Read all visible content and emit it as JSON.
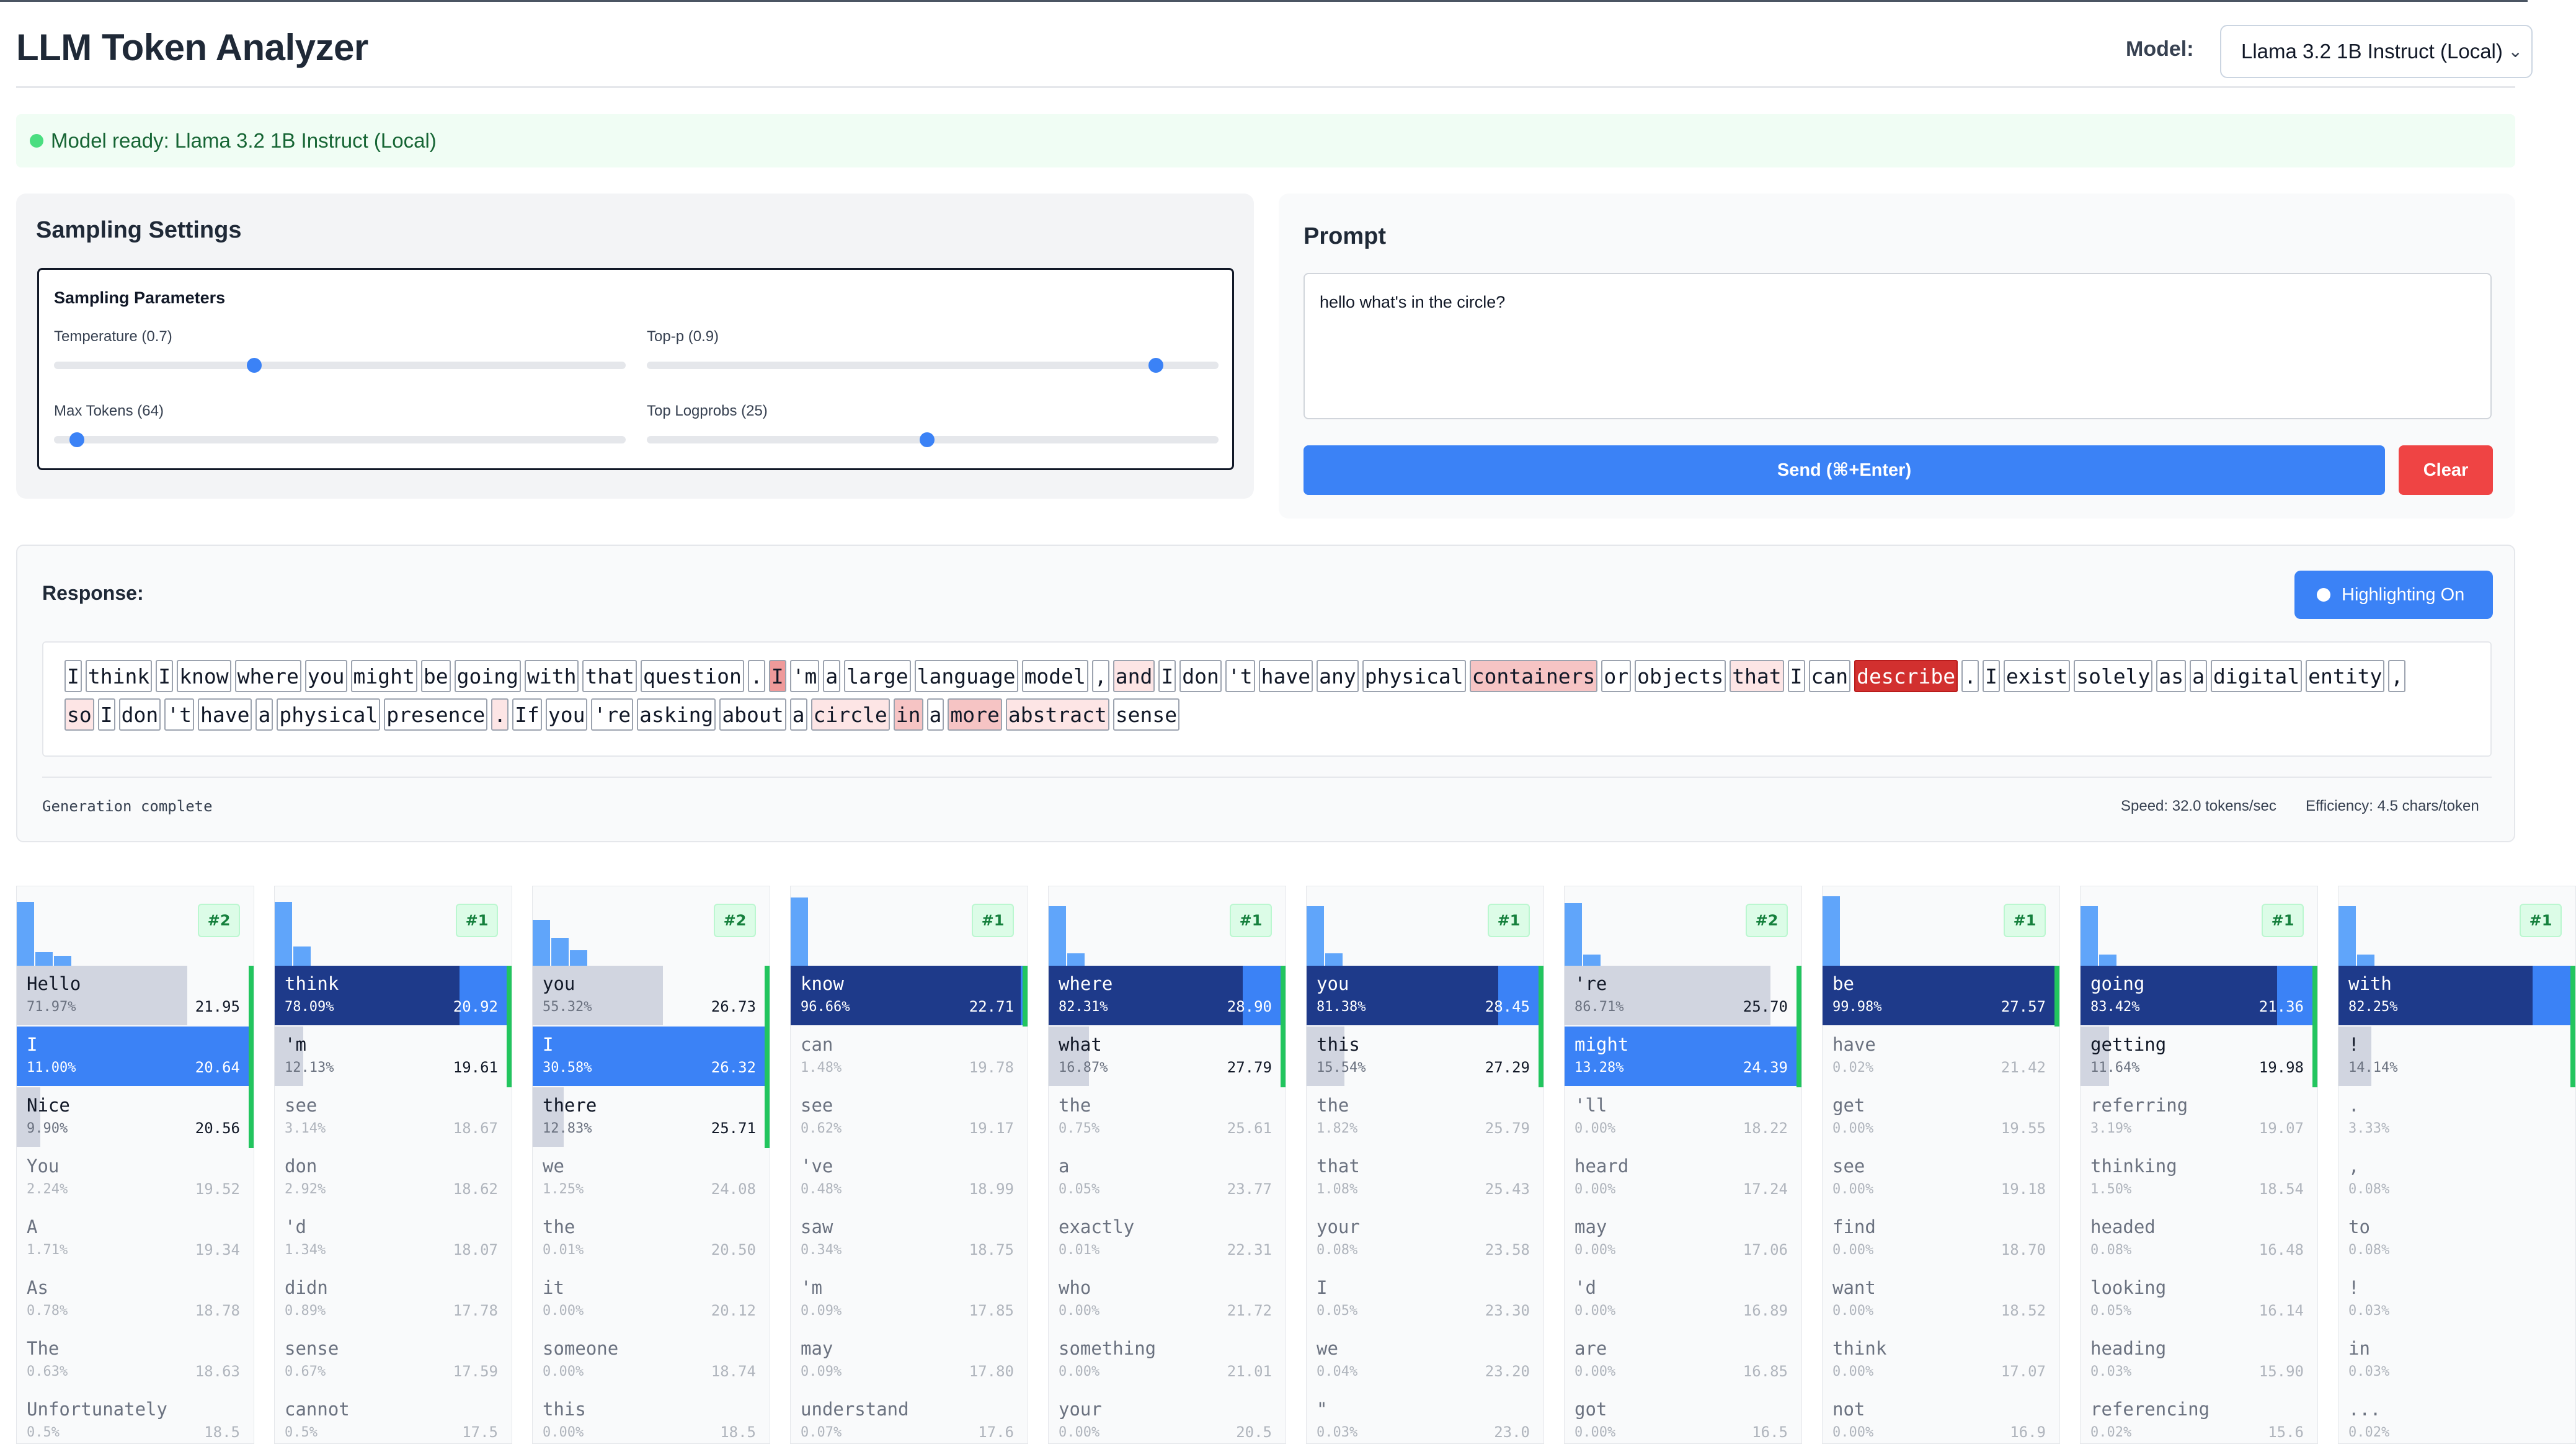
{
  "app": {
    "title": "LLM Token Analyzer"
  },
  "model": {
    "label": "Model:",
    "selected": "Llama 3.2 1B Instruct (Local)"
  },
  "status": {
    "text": "Model ready: Llama 3.2 1B Instruct (Local)",
    "color": "#4ade80"
  },
  "sampling": {
    "title": "Sampling Settings",
    "params_title": "Sampling Parameters",
    "temperature": {
      "label": "Temperature (0.7)",
      "fraction": 0.35
    },
    "top_p": {
      "label": "Top-p (0.9)",
      "fraction": 0.89
    },
    "max_tokens": {
      "label": "Max Tokens (64)",
      "fraction": 0.04
    },
    "top_logprobs": {
      "label": "Top Logprobs (25)",
      "fraction": 0.49
    }
  },
  "prompt": {
    "title": "Prompt",
    "value": "hello what's in the circle?",
    "send_label": "Send (⌘+Enter)",
    "clear_label": "Clear"
  },
  "response": {
    "title": "Response:",
    "highlight_label": "Highlighting On",
    "lines": [
      [
        {
          "t": "I",
          "h": 0
        },
        {
          "t": "think",
          "h": 0
        },
        {
          "t": "I",
          "h": 0
        },
        {
          "t": "know",
          "h": 0
        },
        {
          "t": "where",
          "h": 0
        },
        {
          "t": "you",
          "h": 0
        },
        {
          "t": "might",
          "h": 0
        },
        {
          "t": "be",
          "h": 0
        },
        {
          "t": "going",
          "h": 0
        },
        {
          "t": "with",
          "h": 0
        },
        {
          "t": "that",
          "h": 0
        },
        {
          "t": "question",
          "h": 0
        },
        {
          "t": ".",
          "h": 0
        },
        {
          "t": "I",
          "h": 3
        },
        {
          "t": "'m",
          "h": 0
        },
        {
          "t": "a",
          "h": 0
        },
        {
          "t": "large",
          "h": 0
        },
        {
          "t": "language",
          "h": 0
        },
        {
          "t": "model",
          "h": 0
        },
        {
          "t": ",",
          "h": 0
        },
        {
          "t": "and",
          "h": 1
        },
        {
          "t": "I",
          "h": 0
        },
        {
          "t": "don",
          "h": 0
        },
        {
          "t": "'t",
          "h": 0
        },
        {
          "t": "have",
          "h": 0
        },
        {
          "t": "any",
          "h": 0
        },
        {
          "t": "physical",
          "h": 0
        },
        {
          "t": "containers",
          "h": 2
        },
        {
          "t": "or",
          "h": 0
        },
        {
          "t": "objects",
          "h": 0
        },
        {
          "t": "that",
          "h": 1
        },
        {
          "t": "I",
          "h": 0
        },
        {
          "t": "can",
          "h": 0
        },
        {
          "t": "describe",
          "h": 4
        },
        {
          "t": ".",
          "h": 0
        },
        {
          "t": "I",
          "h": 0
        },
        {
          "t": "exist",
          "h": 0
        },
        {
          "t": "solely",
          "h": 0
        },
        {
          "t": "as",
          "h": 0
        },
        {
          "t": "a",
          "h": 0
        },
        {
          "t": "digital",
          "h": 0
        },
        {
          "t": "entity",
          "h": 0
        },
        {
          "t": ",",
          "h": 0
        }
      ],
      [
        {
          "t": "so",
          "h": 1
        },
        {
          "t": "I",
          "h": 0
        },
        {
          "t": "don",
          "h": 0
        },
        {
          "t": "'t",
          "h": 0
        },
        {
          "t": "have",
          "h": 0
        },
        {
          "t": "a",
          "h": 0
        },
        {
          "t": "physical",
          "h": 0
        },
        {
          "t": "presence",
          "h": 0
        },
        {
          "t": ".",
          "h": 1
        },
        {
          "t": "If",
          "h": 0
        },
        {
          "t": "you",
          "h": 0
        },
        {
          "t": "'re",
          "h": 0
        },
        {
          "t": "asking",
          "h": 0
        },
        {
          "t": "about",
          "h": 0
        },
        {
          "t": "a",
          "h": 0
        },
        {
          "t": "circle",
          "h": 1
        },
        {
          "t": "in",
          "h": 2
        },
        {
          "t": "a",
          "h": 0
        },
        {
          "t": "more",
          "h": 2
        },
        {
          "t": "abstract",
          "h": 1
        },
        {
          "t": "sense",
          "h": 0
        }
      ]
    ],
    "generation_status": "Generation complete",
    "speed": "Speed: 32.0 tokens/sec",
    "efficiency": "Efficiency: 4.5 chars/token"
  },
  "token_columns": [
    {
      "rank": "#2",
      "hist": [
        0.92,
        0.2,
        0.14
      ],
      "cands": [
        {
          "t": "Hello",
          "p": "71.97%",
          "lp": "21.95",
          "f": 0.72,
          "s": "light"
        },
        {
          "t": "I",
          "p": "11.00%",
          "lp": "20.64",
          "f": 1.0,
          "s": "blue"
        },
        {
          "t": "Nice",
          "p": "9.90%",
          "lp": "20.56",
          "f": 0.1,
          "s": "light"
        },
        {
          "t": "You",
          "p": "2.24%",
          "lp": "19.52",
          "f": 0,
          "s": "dim"
        },
        {
          "t": "A",
          "p": "1.71%",
          "lp": "19.34",
          "f": 0,
          "s": "dim"
        },
        {
          "t": "As",
          "p": "0.78%",
          "lp": "18.78",
          "f": 0,
          "s": "dim"
        },
        {
          "t": "The",
          "p": "0.63%",
          "lp": "18.63",
          "f": 0,
          "s": "dim"
        },
        {
          "t": "Unfortunately",
          "p": "0.5%",
          "lp": "18.5",
          "f": 0,
          "s": "dim"
        }
      ]
    },
    {
      "rank": "#1",
      "hist": [
        0.92,
        0.28
      ],
      "cands": [
        {
          "t": "think",
          "p": "78.09%",
          "lp": "20.92",
          "f": 1.0,
          "s": "navy"
        },
        {
          "t": "'m",
          "p": "12.13%",
          "lp": "19.61",
          "f": 0.12,
          "s": "light"
        },
        {
          "t": "see",
          "p": "3.14%",
          "lp": "18.67",
          "f": 0,
          "s": "dim"
        },
        {
          "t": "don",
          "p": "2.92%",
          "lp": "18.62",
          "f": 0,
          "s": "dim"
        },
        {
          "t": "'d",
          "p": "1.34%",
          "lp": "18.07",
          "f": 0,
          "s": "dim"
        },
        {
          "t": "didn",
          "p": "0.89%",
          "lp": "17.78",
          "f": 0,
          "s": "dim"
        },
        {
          "t": "sense",
          "p": "0.67%",
          "lp": "17.59",
          "f": 0,
          "s": "dim"
        },
        {
          "t": "cannot",
          "p": "0.5%",
          "lp": "17.5",
          "f": 0,
          "s": "dim"
        }
      ]
    },
    {
      "rank": "#2",
      "hist": [
        0.66,
        0.4,
        0.22
      ],
      "cands": [
        {
          "t": "you",
          "p": "55.32%",
          "lp": "26.73",
          "f": 0.55,
          "s": "light"
        },
        {
          "t": "I",
          "p": "30.58%",
          "lp": "26.32",
          "f": 1.0,
          "s": "blue"
        },
        {
          "t": "there",
          "p": "12.83%",
          "lp": "25.71",
          "f": 0.13,
          "s": "light"
        },
        {
          "t": "we",
          "p": "1.25%",
          "lp": "24.08",
          "f": 0,
          "s": "dim"
        },
        {
          "t": "the",
          "p": "0.01%",
          "lp": "20.50",
          "f": 0,
          "s": "dim"
        },
        {
          "t": "it",
          "p": "0.00%",
          "lp": "20.12",
          "f": 0,
          "s": "dim"
        },
        {
          "t": "someone",
          "p": "0.00%",
          "lp": "18.74",
          "f": 0,
          "s": "dim"
        },
        {
          "t": "this",
          "p": "0.00%",
          "lp": "18.5",
          "f": 0,
          "s": "dim"
        }
      ]
    },
    {
      "rank": "#1",
      "hist": [
        0.98
      ],
      "cands": [
        {
          "t": "know",
          "p": "96.66%",
          "lp": "22.71",
          "f": 1.0,
          "s": "navy"
        },
        {
          "t": "can",
          "p": "1.48%",
          "lp": "19.78",
          "f": 0,
          "s": "dim"
        },
        {
          "t": "see",
          "p": "0.62%",
          "lp": "19.17",
          "f": 0,
          "s": "dim"
        },
        {
          "t": "'ve",
          "p": "0.48%",
          "lp": "18.99",
          "f": 0,
          "s": "dim"
        },
        {
          "t": "saw",
          "p": "0.34%",
          "lp": "18.75",
          "f": 0,
          "s": "dim"
        },
        {
          "t": "'m",
          "p": "0.09%",
          "lp": "17.85",
          "f": 0,
          "s": "dim"
        },
        {
          "t": "may",
          "p": "0.09%",
          "lp": "17.80",
          "f": 0,
          "s": "dim"
        },
        {
          "t": "understand",
          "p": "0.07%",
          "lp": "17.6",
          "f": 0,
          "s": "dim"
        }
      ]
    },
    {
      "rank": "#1",
      "hist": [
        0.86,
        0.18
      ],
      "cands": [
        {
          "t": "where",
          "p": "82.31%",
          "lp": "28.90",
          "f": 1.0,
          "s": "navy"
        },
        {
          "t": "what",
          "p": "16.87%",
          "lp": "27.79",
          "f": 0.17,
          "s": "light"
        },
        {
          "t": "the",
          "p": "0.75%",
          "lp": "25.61",
          "f": 0,
          "s": "dim"
        },
        {
          "t": "a",
          "p": "0.05%",
          "lp": "23.77",
          "f": 0,
          "s": "dim"
        },
        {
          "t": "exactly",
          "p": "0.01%",
          "lp": "22.31",
          "f": 0,
          "s": "dim"
        },
        {
          "t": "who",
          "p": "0.00%",
          "lp": "21.72",
          "f": 0,
          "s": "dim"
        },
        {
          "t": "something",
          "p": "0.00%",
          "lp": "21.01",
          "f": 0,
          "s": "dim"
        },
        {
          "t": "your",
          "p": "0.00%",
          "lp": "20.5",
          "f": 0,
          "s": "dim"
        }
      ]
    },
    {
      "rank": "#1",
      "hist": [
        0.86,
        0.18
      ],
      "cands": [
        {
          "t": "you",
          "p": "81.38%",
          "lp": "28.45",
          "f": 1.0,
          "s": "navy"
        },
        {
          "t": "this",
          "p": "15.54%",
          "lp": "27.29",
          "f": 0.16,
          "s": "light"
        },
        {
          "t": "the",
          "p": "1.82%",
          "lp": "25.79",
          "f": 0,
          "s": "dim"
        },
        {
          "t": "that",
          "p": "1.08%",
          "lp": "25.43",
          "f": 0,
          "s": "dim"
        },
        {
          "t": "your",
          "p": "0.08%",
          "lp": "23.58",
          "f": 0,
          "s": "dim"
        },
        {
          "t": "I",
          "p": "0.05%",
          "lp": "23.30",
          "f": 0,
          "s": "dim"
        },
        {
          "t": "we",
          "p": "0.04%",
          "lp": "23.20",
          "f": 0,
          "s": "dim"
        },
        {
          "t": "\"",
          "p": "0.03%",
          "lp": "23.0",
          "f": 0,
          "s": "dim"
        }
      ]
    },
    {
      "rank": "#2",
      "hist": [
        0.9,
        0.16
      ],
      "cands": [
        {
          "t": "'re",
          "p": "86.71%",
          "lp": "25.70",
          "f": 0.87,
          "s": "light"
        },
        {
          "t": "might",
          "p": "13.28%",
          "lp": "24.39",
          "f": 1.0,
          "s": "blue"
        },
        {
          "t": "'ll",
          "p": "0.00%",
          "lp": "18.22",
          "f": 0,
          "s": "dim"
        },
        {
          "t": "heard",
          "p": "0.00%",
          "lp": "17.24",
          "f": 0,
          "s": "dim"
        },
        {
          "t": "may",
          "p": "0.00%",
          "lp": "17.06",
          "f": 0,
          "s": "dim"
        },
        {
          "t": "'d",
          "p": "0.00%",
          "lp": "16.89",
          "f": 0,
          "s": "dim"
        },
        {
          "t": "are",
          "p": "0.00%",
          "lp": "16.85",
          "f": 0,
          "s": "dim"
        },
        {
          "t": "got",
          "p": "0.00%",
          "lp": "16.5",
          "f": 0,
          "s": "dim"
        }
      ]
    },
    {
      "rank": "#1",
      "hist": [
        1.0
      ],
      "cands": [
        {
          "t": "be",
          "p": "99.98%",
          "lp": "27.57",
          "f": 1.0,
          "s": "navy"
        },
        {
          "t": "have",
          "p": "0.02%",
          "lp": "21.42",
          "f": 0,
          "s": "dim"
        },
        {
          "t": "get",
          "p": "0.00%",
          "lp": "19.55",
          "f": 0,
          "s": "dim"
        },
        {
          "t": "see",
          "p": "0.00%",
          "lp": "19.18",
          "f": 0,
          "s": "dim"
        },
        {
          "t": "find",
          "p": "0.00%",
          "lp": "18.70",
          "f": 0,
          "s": "dim"
        },
        {
          "t": "want",
          "p": "0.00%",
          "lp": "18.52",
          "f": 0,
          "s": "dim"
        },
        {
          "t": "think",
          "p": "0.00%",
          "lp": "17.07",
          "f": 0,
          "s": "dim"
        },
        {
          "t": "not",
          "p": "0.00%",
          "lp": "16.9",
          "f": 0,
          "s": "dim"
        }
      ]
    },
    {
      "rank": "#1",
      "hist": [
        0.86,
        0.16
      ],
      "cands": [
        {
          "t": "going",
          "p": "83.42%",
          "lp": "21.36",
          "f": 1.0,
          "s": "navy"
        },
        {
          "t": "getting",
          "p": "11.64%",
          "lp": "19.98",
          "f": 0.12,
          "s": "light"
        },
        {
          "t": "referring",
          "p": "3.19%",
          "lp": "19.07",
          "f": 0,
          "s": "dim"
        },
        {
          "t": "thinking",
          "p": "1.50%",
          "lp": "18.54",
          "f": 0,
          "s": "dim"
        },
        {
          "t": "headed",
          "p": "0.08%",
          "lp": "16.48",
          "f": 0,
          "s": "dim"
        },
        {
          "t": "looking",
          "p": "0.05%",
          "lp": "16.14",
          "f": 0,
          "s": "dim"
        },
        {
          "t": "heading",
          "p": "0.03%",
          "lp": "15.90",
          "f": 0,
          "s": "dim"
        },
        {
          "t": "referencing",
          "p": "0.02%",
          "lp": "15.6",
          "f": 0,
          "s": "dim"
        }
      ]
    },
    {
      "rank": "#1",
      "hist": [
        0.86,
        0.16
      ],
      "cands": [
        {
          "t": "with",
          "p": "82.25%",
          "lp": "",
          "f": 1.0,
          "s": "navy"
        },
        {
          "t": "!",
          "p": "14.14%",
          "lp": "",
          "f": 0.14,
          "s": "light"
        },
        {
          "t": ".",
          "p": "3.33%",
          "lp": "",
          "f": 0,
          "s": "dim"
        },
        {
          "t": ",",
          "p": "0.08%",
          "lp": "",
          "f": 0,
          "s": "dim"
        },
        {
          "t": "to",
          "p": "0.08%",
          "lp": "",
          "f": 0,
          "s": "dim"
        },
        {
          "t": "!",
          "p": "0.03%",
          "lp": "",
          "f": 0,
          "s": "dim"
        },
        {
          "t": "in",
          "p": "0.03%",
          "lp": "",
          "f": 0,
          "s": "dim"
        },
        {
          "t": "...",
          "p": "0.02%",
          "lp": "",
          "f": 0,
          "s": "dim"
        }
      ]
    }
  ],
  "colors": {
    "accent": "#3b82f6",
    "navy": "#1e3a8a",
    "danger": "#ef4444",
    "success": "#22c55e"
  }
}
